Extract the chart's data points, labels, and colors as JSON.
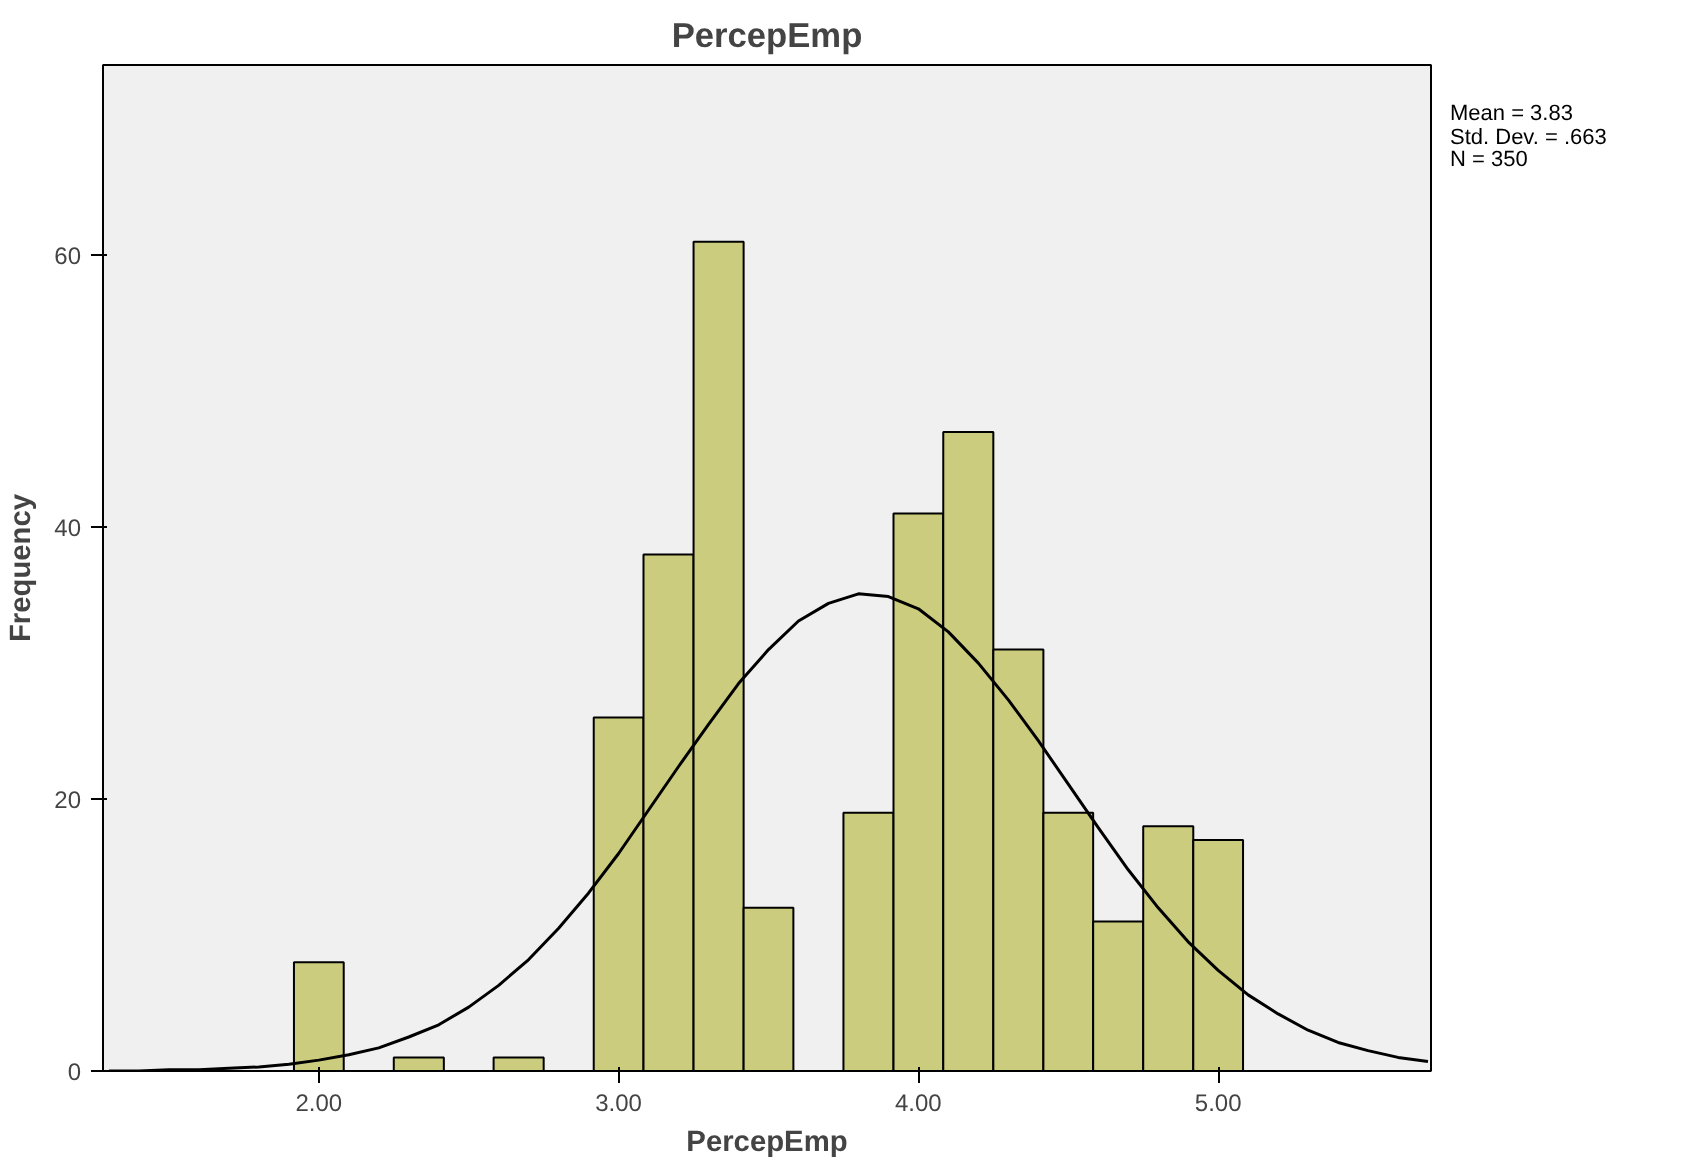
{
  "chart_data": {
    "type": "histogram",
    "title": "PercepEmp",
    "xlabel": "PercepEmp",
    "ylabel": "Frequency",
    "bins": [
      1.917,
      2.083,
      2.25,
      2.417,
      2.583,
      2.75,
      2.917,
      3.083,
      3.25,
      3.417,
      3.583,
      3.75,
      3.917,
      4.083,
      4.25,
      4.417,
      4.583,
      4.75,
      4.917,
      5.083
    ],
    "series": [
      {
        "color": "#cccc7e",
        "values": [
          8,
          0,
          1,
          0,
          1,
          0,
          26,
          38,
          61,
          12,
          0,
          19,
          41,
          47,
          31,
          19,
          11,
          18,
          17
        ]
      },
      {
        "type": "line",
        "color": "#000000",
        "x": [
          1.3,
          1.4,
          1.5,
          1.6,
          1.7,
          1.8,
          1.9,
          2.0,
          2.1,
          2.2,
          2.3,
          2.4,
          2.5,
          2.6,
          2.7,
          2.8,
          2.9,
          3.0,
          3.1,
          3.2,
          3.3,
          3.4,
          3.5,
          3.6,
          3.7,
          3.8,
          3.9,
          4.0,
          4.1,
          4.2,
          4.3,
          4.4,
          4.5,
          4.6,
          4.7,
          4.8,
          4.9,
          5.0,
          5.1,
          5.2,
          5.3,
          5.4,
          5.5,
          5.6,
          5.7
        ],
        "values": [
          0.0,
          0.0,
          0.1,
          0.1,
          0.2,
          0.3,
          0.5,
          0.8,
          1.2,
          1.7,
          2.5,
          3.4,
          4.7,
          6.3,
          8.2,
          10.5,
          13.1,
          16.0,
          19.2,
          22.4,
          25.5,
          28.5,
          31.0,
          33.1,
          34.4,
          35.1,
          34.9,
          34.0,
          32.3,
          30.0,
          27.3,
          24.3,
          21.1,
          17.9,
          14.8,
          12.0,
          9.5,
          7.4,
          5.6,
          4.2,
          3.0,
          2.1,
          1.5,
          1.0,
          0.7
        ]
      }
    ],
    "xlim": [
      1.28,
      5.71
    ],
    "ylim": [
      0,
      74
    ],
    "xticks": [
      {
        "value": 2,
        "label": "2.00"
      },
      {
        "value": 3,
        "label": "3.00"
      },
      {
        "value": 4,
        "label": "4.00"
      },
      {
        "value": 5,
        "label": "5.00"
      }
    ],
    "yticks": [
      0,
      20,
      40,
      60
    ],
    "annotations": [
      "Mean = 3.83",
      "Std. Dev. = .663",
      "N = 350"
    ]
  }
}
